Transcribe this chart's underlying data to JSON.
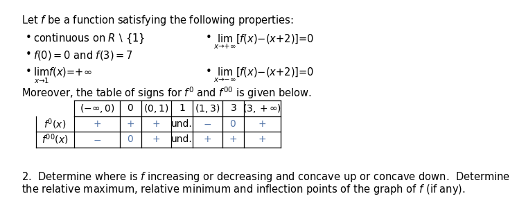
{
  "title_text": "Let $f$ be a function satisfying the following properties:",
  "bullet1_left": "continuous on $R \\setminus \\{1\\}$",
  "bullet2_left": "$f(0) = 0$ and $f(3) = 7$",
  "bullet3_left": "$\\lim_{x \\to 1} f(x) = +\\infty$",
  "bullet1_right": "$\\lim_{x \\to +\\infty} [f(x) - (x + 2)] = 0$",
  "bullet2_right": "$\\lim_{x \\to -\\infty} [f(x) - (x + 2)] = 0$",
  "moreover_text": "Moreover, the table of signs for $f'$ and $f''$ is given below.",
  "question_line1": "2.  Determine where is $f$ increasing or decreasing and concave up or concave down.  Determine",
  "question_line2": "the relative maximum, relative minimum and inflection points of the graph of $f$ (if any).",
  "col_headers": [
    "$(-\\infty,0)$",
    "$0$",
    "$(0,1)$",
    "$1$",
    "$(1,3)$",
    "$3$",
    "$(3,+\\infty)$"
  ],
  "row_labels": [
    "$f'(x)$",
    "$f''(x)$"
  ],
  "table_row1": [
    "+",
    "+",
    "+",
    "und.",
    "$-$",
    "$0$",
    "+"
  ],
  "table_row2": [
    "$-$",
    "$0$",
    "+",
    "und.",
    "+",
    "+",
    "+"
  ],
  "bg_color": "#ffffff",
  "main_text_color": "#000000",
  "math_color": "#3d5a8a",
  "table_sign_color": "#5577aa",
  "font_size": 10.5,
  "table_font_size": 10.0
}
